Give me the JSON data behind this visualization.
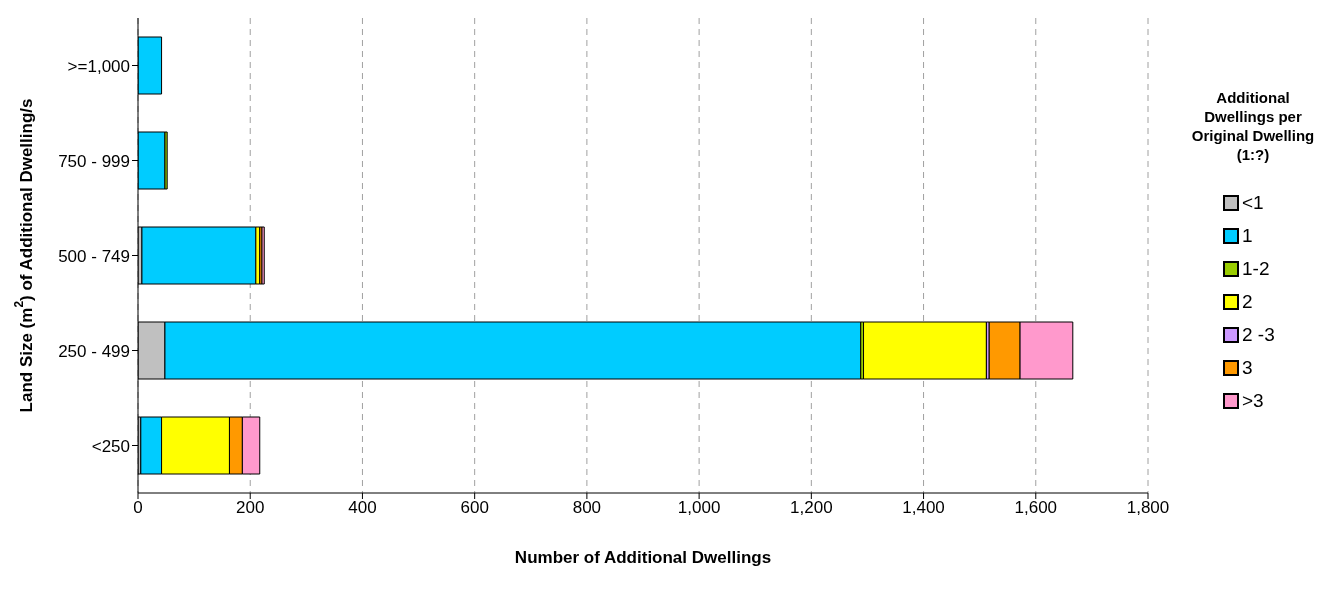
{
  "chart_data": {
    "type": "bar",
    "orientation": "horizontal",
    "stacked": true,
    "xlabel": "Number of Additional Dwellings",
    "ylabel": "Land Size (m$^{2}$) of Additional Dwelling/s",
    "legend_title": "Additional Dwellings per Original Dwelling (1:?)",
    "legend": "right",
    "grid": "x",
    "xlim": [
      0,
      1800
    ],
    "xticks": [
      {
        "value": 0,
        "label": "0"
      },
      {
        "value": 200,
        "label": "200"
      },
      {
        "value": 400,
        "label": "400"
      },
      {
        "value": 600,
        "label": "600"
      },
      {
        "value": 800,
        "label": "800"
      },
      {
        "value": 1000,
        "label": "1,000"
      },
      {
        "value": 1200,
        "label": "1,200"
      },
      {
        "value": 1400,
        "label": "1,400"
      },
      {
        "value": 1600,
        "label": "1,600"
      },
      {
        "value": 1800,
        "label": "1,800"
      }
    ],
    "categories": [
      ">=1,000",
      "750 - 999",
      "500 - 749",
      "250 - 499",
      "<250"
    ],
    "series": [
      {
        "name": "<1",
        "color": "#c0c0c0",
        "values": [
          0,
          0,
          7,
          48,
          5
        ]
      },
      {
        "name": "1",
        "color": "#00ccff",
        "values": [
          42,
          48,
          203,
          1240,
          37
        ]
      },
      {
        "name": "1-2",
        "color": "#99cc00",
        "values": [
          0,
          4,
          0,
          5,
          0
        ]
      },
      {
        "name": "2",
        "color": "#ffff00",
        "values": [
          0,
          0,
          7,
          219,
          121
        ]
      },
      {
        "name": "2 -3",
        "color": "#cc99ff",
        "values": [
          0,
          0,
          null,
          5,
          0
        ]
      },
      {
        "name": "3",
        "color": "#ff9900",
        "values": [
          0,
          0,
          4,
          55,
          23
        ]
      },
      {
        "name": ">3",
        "color": "#ff99cc",
        "values": [
          0,
          0,
          4,
          94,
          31
        ]
      }
    ]
  }
}
